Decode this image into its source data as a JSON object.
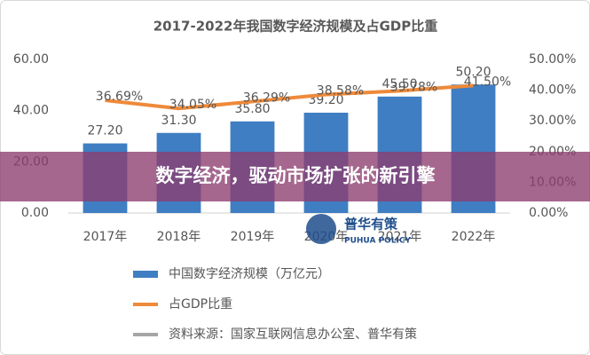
{
  "chart_data": {
    "type": "bar",
    "title": "2017-2022年我国数字经济规模及占GDP比重",
    "categories": [
      "2017年",
      "2018年",
      "2019年",
      "2020年",
      "2021年",
      "2022年"
    ],
    "series": [
      {
        "name": "中国数字经济规模（万亿元）",
        "color": "#3f7ec2",
        "type": "bar",
        "values": [
          27.2,
          31.3,
          35.8,
          39.2,
          45.5,
          50.2
        ],
        "value_labels": [
          "27.20",
          "31.30",
          "35.80",
          "39.20",
          "45.50",
          "50.20"
        ]
      },
      {
        "name": "占GDP比重",
        "color": "#ee8a3a",
        "type": "line",
        "axis": "y2",
        "values": [
          36.69,
          34.05,
          36.29,
          38.58,
          39.78,
          41.5
        ],
        "value_labels": [
          "36.69%",
          "34.05%",
          "36.29%",
          "38.58%",
          "39.78%",
          "41.50%"
        ]
      }
    ],
    "ylim": [
      0,
      60
    ],
    "yticks": [
      {
        "value": 0,
        "label": "0.00"
      },
      {
        "value": 20,
        "label": "20.00"
      },
      {
        "value": 40,
        "label": "40.00"
      },
      {
        "value": 60,
        "label": "60.00"
      }
    ],
    "y2lim": [
      0,
      50
    ],
    "y2ticks": [
      {
        "value": 0,
        "label": "0.00%"
      },
      {
        "value": 10,
        "label": "10.00%"
      },
      {
        "value": 20,
        "label": "20.00%"
      },
      {
        "value": 30,
        "label": "30.00%"
      },
      {
        "value": 40,
        "label": "40.00%"
      },
      {
        "value": 50,
        "label": "50.00%"
      }
    ],
    "grid": false,
    "source": "资料来源：国家互联网信息办公室、普华有策",
    "banner": "数字经济，驱动市场扩张的新引擎",
    "watermark": [
      "普华有策",
      "PUHUA POLICY"
    ]
  }
}
